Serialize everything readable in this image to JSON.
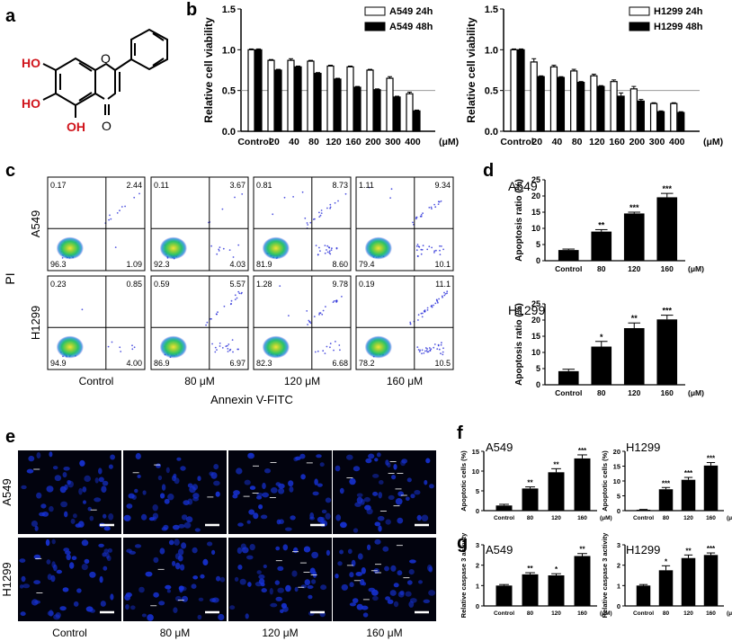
{
  "panel_labels": {
    "a": "a",
    "b": "b",
    "c": "c",
    "d": "d",
    "e": "e",
    "f": "f",
    "g": "g"
  },
  "structure": {
    "ring_atoms": [
      "O",
      "O"
    ],
    "substituents": [
      "HO",
      "HO",
      "OH"
    ],
    "colors": {
      "bonds": "#000000",
      "hydroxyl": "#d0141b"
    }
  },
  "colors": {
    "open_bar": "#ffffff",
    "black_bar": "#000000",
    "reference_line": "#888888",
    "facs_high": "#f2e23a",
    "facs_mid": "#29c26b",
    "facs_low": "#1a1fd6",
    "fluor_bg": "#02030e",
    "fluor_cell": "#1733d9"
  },
  "chart_data": [
    {
      "id": "b1",
      "type": "bar",
      "categories": [
        "Control",
        "20",
        "40",
        "80",
        "120",
        "160",
        "200",
        "300",
        "400"
      ],
      "unit_label": "(μM)",
      "ylabel": "Relative cell viability",
      "ylim": [
        0,
        1.5
      ],
      "yticks": [
        "0.0",
        "0.5",
        "1.0",
        "1.5"
      ],
      "reference_line": 0.5,
      "legend_position": "top-right",
      "series": [
        {
          "name": "A549 24h",
          "style": "open",
          "values": [
            1.0,
            0.87,
            0.87,
            0.86,
            0.8,
            0.79,
            0.75,
            0.65,
            0.46
          ],
          "errors": [
            0.01,
            0.01,
            0.02,
            0.01,
            0.01,
            0.01,
            0.01,
            0.02,
            0.02
          ]
        },
        {
          "name": "A549 48h",
          "style": "black",
          "values": [
            1.0,
            0.75,
            0.79,
            0.71,
            0.64,
            0.54,
            0.51,
            0.42,
            0.25
          ],
          "errors": [
            0.01,
            0.01,
            0.01,
            0.01,
            0.01,
            0.01,
            0.01,
            0.01,
            0.01
          ]
        }
      ]
    },
    {
      "id": "b2",
      "type": "bar",
      "categories": [
        "Control",
        "20",
        "40",
        "80",
        "120",
        "160",
        "200",
        "300",
        "400"
      ],
      "unit_label": "(μM)",
      "ylabel": "Relative cell viability",
      "ylim": [
        0,
        1.5
      ],
      "yticks": [
        "0.0",
        "0.5",
        "1.0",
        "1.5"
      ],
      "reference_line": 0.5,
      "legend_position": "top-right",
      "series": [
        {
          "name": "H1299 24h",
          "style": "open",
          "values": [
            1.0,
            0.85,
            0.79,
            0.74,
            0.68,
            0.61,
            0.52,
            0.34,
            0.34
          ],
          "errors": [
            0.01,
            0.04,
            0.02,
            0.02,
            0.02,
            0.02,
            0.03,
            0.01,
            0.01
          ]
        },
        {
          "name": "H1299 48h",
          "style": "black",
          "values": [
            1.0,
            0.67,
            0.66,
            0.6,
            0.55,
            0.43,
            0.37,
            0.24,
            0.23
          ],
          "errors": [
            0.01,
            0.01,
            0.01,
            0.01,
            0.01,
            0.04,
            0.02,
            0.01,
            0.01
          ]
        }
      ]
    },
    {
      "id": "c",
      "type": "scatter",
      "xlabel": "Annexin V-FITC",
      "ylabel": "PI",
      "rows": [
        "A549",
        "H1299"
      ],
      "columns": [
        "Control",
        "80 μM",
        "120 μM",
        "160 μM"
      ],
      "quadrant_percentages": [
        [
          {
            "ul": "0.17",
            "ur": "2.44",
            "ll": "96.3",
            "lr": "1.09"
          },
          {
            "ul": "0.11",
            "ur": "3.67",
            "ll": "92.3",
            "lr": "4.03"
          },
          {
            "ul": "0.81",
            "ur": "8.73",
            "ll": "81.9",
            "lr": "8.60"
          },
          {
            "ul": "1.11",
            "ur": "9.34",
            "ll": "79.4",
            "lr": "10.1"
          }
        ],
        [
          {
            "ul": "0.23",
            "ur": "0.85",
            "ll": "94.9",
            "lr": "4.00"
          },
          {
            "ul": "0.59",
            "ur": "5.57",
            "ll": "86.9",
            "lr": "6.97"
          },
          {
            "ul": "1.28",
            "ur": "9.78",
            "ll": "82.3",
            "lr": "6.68"
          },
          {
            "ul": "0.19",
            "ur": "11.1",
            "ll": "78.2",
            "lr": "10.5"
          }
        ]
      ]
    },
    {
      "id": "d1",
      "type": "bar",
      "title": "A549",
      "categories": [
        "Control",
        "80",
        "120",
        "160"
      ],
      "unit_label": "(μM)",
      "ylabel": "Apoptosis ratio (%)",
      "ylim": [
        0,
        25
      ],
      "yticks": [
        "0",
        "5",
        "10",
        "15",
        "20",
        "25"
      ],
      "values": [
        3.3,
        9.0,
        14.6,
        19.6
      ],
      "errors": [
        0.3,
        0.6,
        0.4,
        1.2
      ],
      "significance": [
        "",
        "**",
        "***",
        "***"
      ]
    },
    {
      "id": "d2",
      "type": "bar",
      "title": "H1299",
      "categories": [
        "Control",
        "80",
        "120",
        "160"
      ],
      "unit_label": "(μM)",
      "ylabel": "Apoptosis ratio (%)",
      "ylim": [
        0,
        25
      ],
      "yticks": [
        "0",
        "5",
        "10",
        "15",
        "20",
        "25"
      ],
      "values": [
        4.2,
        11.8,
        17.5,
        20.2
      ],
      "errors": [
        0.6,
        1.6,
        1.6,
        1.3
      ],
      "significance": [
        "",
        "*",
        "**",
        "***"
      ]
    },
    {
      "id": "e",
      "type": "table",
      "rows": [
        "A549",
        "H1299"
      ],
      "columns": [
        "Control",
        "80 μM",
        "120 μM",
        "160 μM"
      ]
    },
    {
      "id": "f1",
      "type": "bar",
      "title": "A549",
      "categories": [
        "Control",
        "80",
        "120",
        "160"
      ],
      "unit_label": "(μM)",
      "ylabel": "Apoptotic cells (%)",
      "ylim": [
        0,
        15
      ],
      "yticks": [
        "0",
        "5",
        "10",
        "15"
      ],
      "values": [
        1.3,
        5.6,
        9.7,
        13.2
      ],
      "errors": [
        0.3,
        0.4,
        0.9,
        0.9
      ],
      "significance": [
        "",
        "**",
        "**",
        "***"
      ]
    },
    {
      "id": "f2",
      "type": "bar",
      "title": "H1299",
      "categories": [
        "Control",
        "80",
        "120",
        "160"
      ],
      "unit_label": "(μM)",
      "ylabel": "Apoptotic cells (%)",
      "ylim": [
        0,
        20
      ],
      "yticks": [
        "0",
        "5",
        "10",
        "15",
        "20"
      ],
      "values": [
        0.3,
        7.2,
        10.4,
        15.2
      ],
      "errors": [
        0.1,
        0.6,
        0.8,
        1.0
      ],
      "significance": [
        "",
        "***",
        "***",
        "***"
      ]
    },
    {
      "id": "g1",
      "type": "bar",
      "title": "A549",
      "categories": [
        "Control",
        "80",
        "120",
        "160"
      ],
      "unit_label": "(μM)",
      "ylabel": "Relative caspase 3 activity",
      "ylim": [
        0,
        3
      ],
      "yticks": [
        "0",
        "1",
        "2",
        "3"
      ],
      "values": [
        1.0,
        1.55,
        1.5,
        2.45
      ],
      "errors": [
        0.05,
        0.08,
        0.08,
        0.12
      ],
      "significance": [
        "",
        "**",
        "*",
        "**"
      ]
    },
    {
      "id": "g2",
      "type": "bar",
      "title": "H1299",
      "categories": [
        "Control",
        "80",
        "120",
        "160"
      ],
      "unit_label": "(μM)",
      "ylabel": "Relative caspase 3 activity",
      "ylim": [
        0,
        3
      ],
      "yticks": [
        "0",
        "1",
        "2",
        "3"
      ],
      "values": [
        1.0,
        1.75,
        2.35,
        2.5
      ],
      "errors": [
        0.05,
        0.22,
        0.15,
        0.1
      ],
      "significance": [
        "",
        "*",
        "**",
        "***"
      ]
    }
  ]
}
